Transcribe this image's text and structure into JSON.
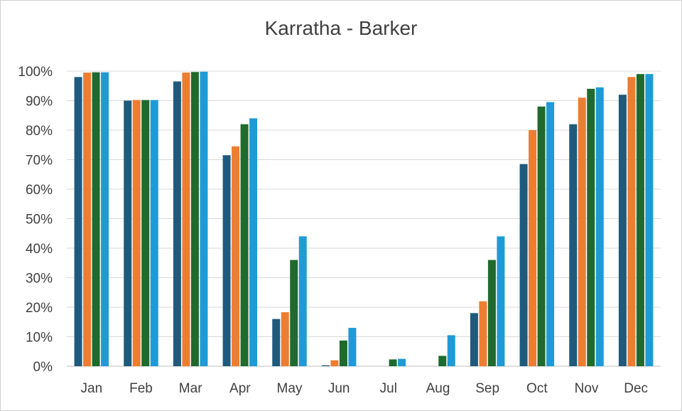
{
  "chart_data": {
    "type": "bar",
    "title": "Karratha - Barker",
    "xlabel": "",
    "ylabel": "",
    "ylim": [
      0,
      1
    ],
    "y_ticks": [
      "0%",
      "10%",
      "20%",
      "30%",
      "40%",
      "50%",
      "60%",
      "70%",
      "80%",
      "90%",
      "100%"
    ],
    "grid": true,
    "legend": "none",
    "categories": [
      "Jan",
      "Feb",
      "Mar",
      "Apr",
      "May",
      "Jun",
      "Jul",
      "Aug",
      "Sep",
      "Oct",
      "Nov",
      "Dec"
    ],
    "series": [
      {
        "color": "#1f5a7c",
        "values": [
          0.98,
          0.9,
          0.965,
          0.715,
          0.16,
          0.003,
          0.0,
          0.0,
          0.18,
          0.685,
          0.82,
          0.92
        ]
      },
      {
        "color": "#ed7d31",
        "values": [
          0.995,
          0.902,
          0.995,
          0.745,
          0.183,
          0.02,
          0.0,
          0.0,
          0.22,
          0.8,
          0.91,
          0.98
        ]
      },
      {
        "color": "#1f6a2c",
        "values": [
          0.996,
          0.902,
          0.997,
          0.82,
          0.36,
          0.087,
          0.023,
          0.035,
          0.36,
          0.88,
          0.94,
          0.99
        ]
      },
      {
        "color": "#1e9bd6",
        "values": [
          0.996,
          0.902,
          0.998,
          0.84,
          0.44,
          0.13,
          0.025,
          0.105,
          0.44,
          0.895,
          0.945,
          0.99
        ]
      }
    ]
  }
}
